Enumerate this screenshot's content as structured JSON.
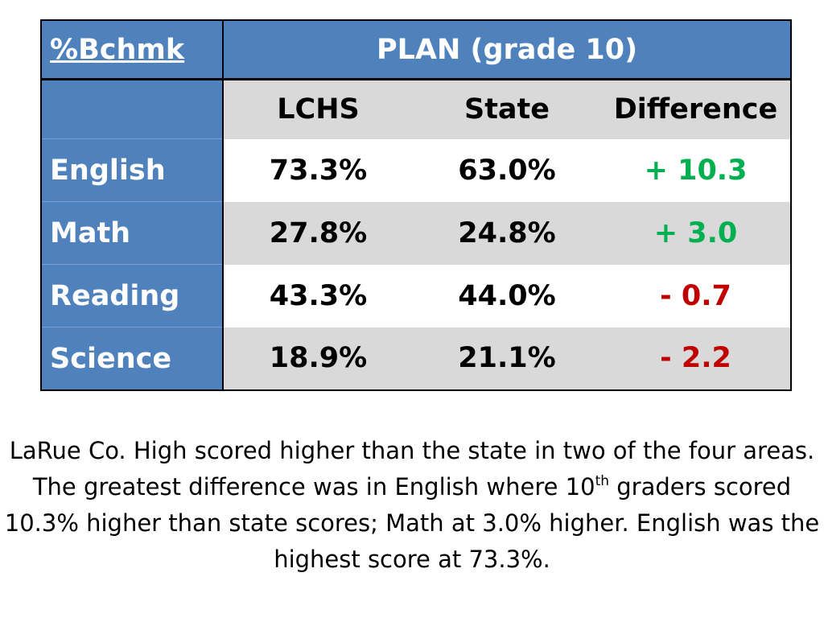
{
  "table": {
    "stub_title": "%Bchmk",
    "group_header": "PLAN (grade 10)",
    "columns": [
      "LCHS",
      "State",
      "Difference"
    ],
    "rows": [
      {
        "subject": "English",
        "lchs": "73.3%",
        "state": "63.0%",
        "difference": "+ 10.3",
        "difference_color": "#00b050"
      },
      {
        "subject": "Math",
        "lchs": "27.8%",
        "state": "24.8%",
        "difference": "+ 3.0",
        "difference_color": "#00b050"
      },
      {
        "subject": "Reading",
        "lchs": "43.3%",
        "state": "44.0%",
        "difference": "- 0.7",
        "difference_color": "#c00000"
      },
      {
        "subject": "Science",
        "lchs": "18.9%",
        "state": "21.1%",
        "difference": "- 2.2",
        "difference_color": "#c00000"
      }
    ]
  },
  "caption": {
    "part1": "LaRue Co. High scored higher than the state in two of the four areas. The greatest difference was in English where 10",
    "superscript": "th",
    "part2": " graders scored 10.3% higher than state scores; Math at 3.0% higher. English was the highest score at 73.3%."
  },
  "colors": {
    "stub_blue": "#4f81bd",
    "band_gray": "#d9d9d9",
    "positive_green": "#00b050",
    "negative_red": "#c00000"
  }
}
